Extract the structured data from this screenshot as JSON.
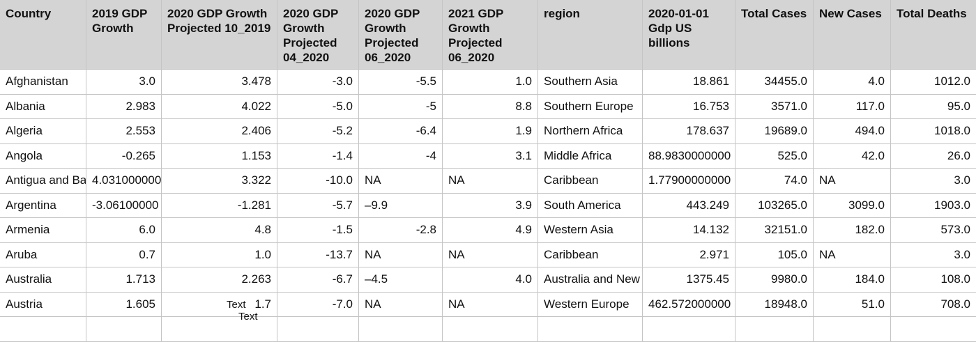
{
  "columns": [
    "Country",
    "2019 GDP Growth",
    "2020 GDP Growth Projected 10_2019",
    "2020 GDP Growth Projected 04_2020",
    "2020 GDP Growth Projected 06_2020",
    "2021 GDP Growth Projected 06_2020",
    "region",
    "2020-01-01 Gdp US billions",
    "Total Cases",
    "New Cases",
    "Total Deaths"
  ],
  "rows": [
    [
      "Afghanistan",
      "3.0",
      "3.478",
      "-3.0",
      "-5.5",
      "1.0",
      "Southern Asia",
      "18.861",
      "34455.0",
      "4.0",
      "1012.0"
    ],
    [
      "Albania",
      "2.983",
      "4.022",
      "-5.0",
      "-5",
      "8.8",
      "Southern Europe",
      "16.753",
      "3571.0",
      "117.0",
      "95.0"
    ],
    [
      "Algeria",
      "2.553",
      "2.406",
      "-5.2",
      "-6.4",
      "1.9",
      "Northern Africa",
      "178.637",
      "19689.0",
      "494.0",
      "1018.0"
    ],
    [
      "Angola",
      "-0.265",
      "1.153",
      "-1.4",
      "-4",
      "3.1",
      "Middle Africa",
      "88.9830000000",
      "525.0",
      "42.0",
      "26.0"
    ],
    [
      "Antigua and Ba",
      "4.031000000",
      "3.322",
      "-10.0",
      "NA",
      "NA",
      "Caribbean",
      "1.77900000000",
      "74.0",
      "NA",
      "3.0"
    ],
    [
      "Argentina",
      "-3.06100000",
      "-1.281",
      "-5.7",
      "–9.9",
      "3.9",
      "South America",
      "443.249",
      "103265.0",
      "3099.0",
      "1903.0"
    ],
    [
      "Armenia",
      "6.0",
      "4.8",
      "-1.5",
      "-2.8",
      "4.9",
      "Western Asia",
      "14.132",
      "32151.0",
      "182.0",
      "573.0"
    ],
    [
      "Aruba",
      "0.7",
      "1.0",
      "-13.7",
      "NA",
      "NA",
      "Caribbean",
      "2.971",
      "105.0",
      "NA",
      "3.0"
    ],
    [
      "Australia",
      "1.713",
      "2.263",
      "-6.7",
      "–4.5",
      "4.0",
      "Australia and New",
      "1375.45",
      "9980.0",
      "184.0",
      "108.0"
    ],
    [
      "Austria",
      "1.605",
      "1.7",
      "-7.0",
      "NA",
      "NA",
      "Western Europe",
      "462.572000000",
      "18948.0",
      "51.0",
      "708.0"
    ],
    [
      "",
      "",
      "",
      "",
      "",
      "",
      "",
      "",
      "",
      "",
      ""
    ]
  ],
  "overlay": {
    "label_1": "Text",
    "label_2": "Text"
  }
}
